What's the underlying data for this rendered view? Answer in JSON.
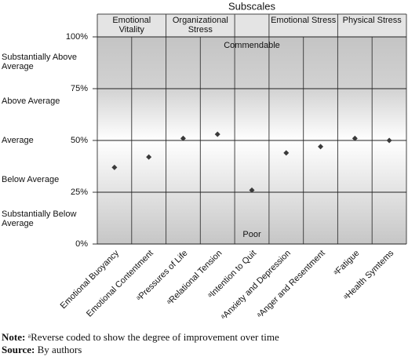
{
  "chart_data": {
    "type": "dot",
    "title": "Subscales",
    "groups": [
      "Emotional Vitality",
      "Emotional Vitality",
      "Organizational Stress",
      "Organizational Stress",
      null,
      "Emotional Stress",
      "Emotional Stress",
      "Physical Stress",
      "Physical Stress"
    ],
    "categories": [
      "Emotional Buoyancy",
      "Emotional Contentment",
      "ᵃPressures of Life",
      "ᵃRelational Tension",
      "ᵃIntention to Quit",
      "ᵃAnxiety and Depression",
      "ᵃAnger and Resentment",
      "ᵃFatigue",
      "ᵃHealth Symtems"
    ],
    "values": [
      37,
      42,
      51,
      53,
      26,
      44,
      47,
      51,
      50
    ],
    "color": "#3a3a3a",
    "ylim": [
      0,
      100
    ],
    "yticks": [
      {
        "value": 0,
        "label": "0%"
      },
      {
        "value": 25,
        "label": "25%"
      },
      {
        "value": 50,
        "label": "50%"
      },
      {
        "value": 75,
        "label": "75%"
      },
      {
        "value": 100,
        "label": "100%"
      }
    ],
    "band_labels": [
      "Substantially Above Average",
      "Above Average",
      "Average",
      "Below Average",
      "Substantially Below Average"
    ],
    "annotations": {
      "top": "Commendable",
      "bottom": "Poor"
    },
    "grid": true
  },
  "footer": {
    "note_label": "Note:",
    "note": "ᵃReverse coded to show the degree of improvement over time",
    "source_label": "Source:",
    "source": "By authors"
  }
}
